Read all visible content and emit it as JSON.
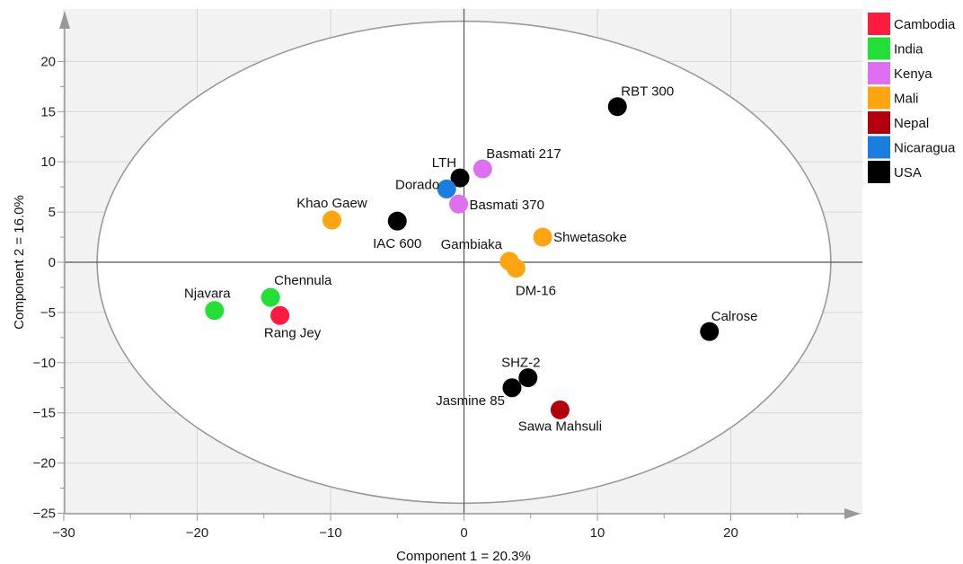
{
  "chart_data": {
    "type": "scatter",
    "xlabel": "Component 1 = 20.3%",
    "ylabel": "Component 2 = 16.0%",
    "xlim": [
      -30,
      30
    ],
    "ylim": [
      -25,
      25
    ],
    "x_ticks": [
      -30,
      -20,
      -10,
      0,
      10,
      20
    ],
    "y_ticks": [
      -25,
      -20,
      -15,
      -10,
      -5,
      0,
      5,
      10,
      15,
      20
    ],
    "grid": true,
    "legend_position": "right",
    "ellipse": {
      "center": [
        0,
        0
      ],
      "radius_x": 27.5,
      "radius_y": 24.0
    },
    "legend": [
      {
        "name": "Cambodia",
        "color": "#ff1a40"
      },
      {
        "name": "India",
        "color": "#22e036"
      },
      {
        "name": "Kenya",
        "color": "#dd6ff0"
      },
      {
        "name": "Mali",
        "color": "#ffa512"
      },
      {
        "name": "Nepal",
        "color": "#b4000c"
      },
      {
        "name": "Nicaragua",
        "color": "#1a7ee0"
      },
      {
        "name": "USA",
        "color": "#000000"
      }
    ],
    "points": [
      {
        "label": "RBT 300",
        "group": "USA",
        "x": 11.5,
        "y": 15.5
      },
      {
        "label": "Basmati 217",
        "group": "Kenya",
        "x": 1.4,
        "y": 9.3
      },
      {
        "label": "LTH",
        "group": "USA",
        "x": -0.3,
        "y": 8.4
      },
      {
        "label": "Dorado",
        "group": "Nicaragua",
        "x": -1.3,
        "y": 7.3
      },
      {
        "label": "Basmati 370",
        "group": "Kenya",
        "x": -0.4,
        "y": 5.8
      },
      {
        "label": "Khao Gaew",
        "group": "Mali",
        "x": -9.9,
        "y": 4.2
      },
      {
        "label": "IAC 600",
        "group": "USA",
        "x": -5.0,
        "y": 4.1
      },
      {
        "label": "Shwetasoke",
        "group": "Mali",
        "x": 5.9,
        "y": 2.5
      },
      {
        "label": "Gambiaka",
        "group": "Mali",
        "x": 3.4,
        "y": 0.1
      },
      {
        "label": "DM-16",
        "group": "Mali",
        "x": 3.9,
        "y": -0.6
      },
      {
        "label": "Chennula",
        "group": "India",
        "x": -14.5,
        "y": -3.5
      },
      {
        "label": "Njavara",
        "group": "India",
        "x": -18.7,
        "y": -4.8
      },
      {
        "label": "Rang Jey",
        "group": "Cambodia",
        "x": -13.8,
        "y": -5.3
      },
      {
        "label": "Calrose",
        "group": "USA",
        "x": 18.4,
        "y": -6.9
      },
      {
        "label": "SHZ-2",
        "group": "USA",
        "x": 4.8,
        "y": -11.5
      },
      {
        "label": "Jasmine 85",
        "group": "USA",
        "x": 3.6,
        "y": -12.5
      },
      {
        "label": "Sawa Mahsuli",
        "group": "Nepal",
        "x": 7.2,
        "y": -14.7
      }
    ]
  }
}
